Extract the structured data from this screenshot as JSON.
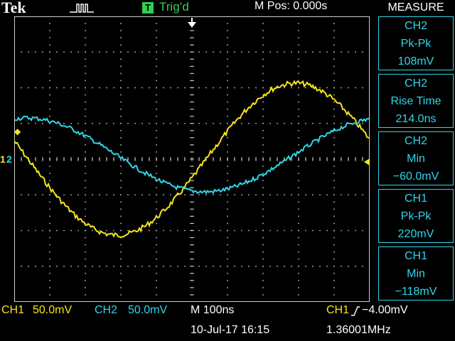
{
  "header": {
    "brand": "Tek",
    "trigger_badge": "T",
    "trigger_status": "Trig’d",
    "position": "M Pos: 0.000s"
  },
  "measure": {
    "title": "MEASURE",
    "boxes": [
      {
        "channel": "CH2",
        "name": "Pk-Pk",
        "value": "108mV"
      },
      {
        "channel": "CH2",
        "name": "Rise Time",
        "value": "214.0ns"
      },
      {
        "channel": "CH2",
        "name": "Min",
        "value": "−60.0mV"
      },
      {
        "channel": "CH1",
        "name": "Pk-Pk",
        "value": "220mV"
      },
      {
        "channel": "CH1",
        "name": "Min",
        "value": "−118mV"
      }
    ]
  },
  "footer": {
    "ch1_label": "CH1",
    "ch1_scale": "50.0mV",
    "ch2_label": "CH2",
    "ch2_scale": "50.0mV",
    "timebase": "M 100ns",
    "trigger_source": "CH1",
    "trigger_level": "−4.00mV",
    "date": "10-Jul-17 16:15",
    "frequency": "1.36001MHz"
  },
  "markers": {
    "ch1_marker": "1",
    "ch2_marker": "2"
  },
  "colors": {
    "ch1": "#f5e61a",
    "ch2": "#2fd6e8",
    "trigger": "#2fd24a",
    "grid": "#cccccc"
  }
}
